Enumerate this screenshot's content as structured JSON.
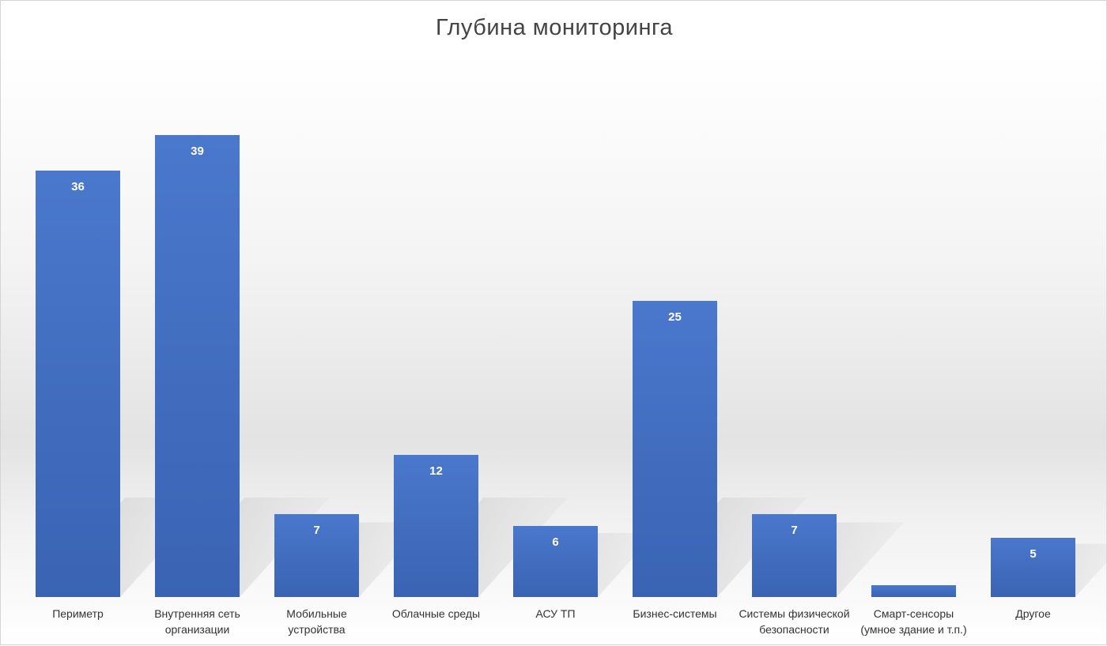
{
  "chart_data": {
    "type": "bar",
    "title": "Глубина мониторинга",
    "xlabel": "",
    "ylabel": "",
    "ylim": [
      0,
      45
    ],
    "grid": false,
    "legend": "none",
    "bar_color": "#4472C4",
    "categories": [
      [
        "Периметр"
      ],
      [
        "Внутренняя сеть",
        "организации"
      ],
      [
        "Мобильные",
        "устройства"
      ],
      [
        "Облачные среды"
      ],
      [
        "АСУ ТП"
      ],
      [
        "Бизнес-системы"
      ],
      [
        "Системы физической",
        "безопасности"
      ],
      [
        "Смарт-сенсоры",
        "(умное здание и т.п.)"
      ],
      [
        "Другое"
      ]
    ],
    "values": [
      36,
      39,
      7,
      12,
      6,
      25,
      7,
      1,
      5
    ],
    "data_labels": [
      "36",
      "39",
      "7",
      "12",
      "6",
      "25",
      "7",
      "",
      "5"
    ]
  }
}
